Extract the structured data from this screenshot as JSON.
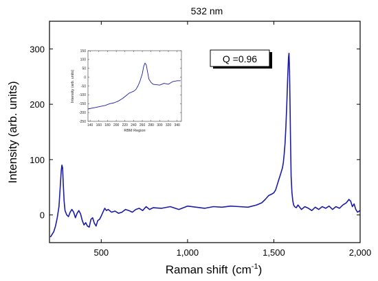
{
  "chart_data": [
    {
      "type": "line",
      "title": "532 nm",
      "xlabel": "Raman shift",
      "xlabel_unit_base": "(cm",
      "xlabel_unit_exp": "-1",
      "xlabel_unit_close": ")",
      "ylabel": "Intensity (arb. units)",
      "xlim": [
        200,
        2000
      ],
      "ylim": [
        -50,
        350
      ],
      "xticks": [
        500,
        1000,
        1500,
        2000
      ],
      "xtick_labels": [
        "500",
        "1,000",
        "1,500",
        "2,000"
      ],
      "yticks": [
        0,
        100,
        200,
        300
      ],
      "ytick_labels": [
        "0",
        "100",
        "200",
        "300"
      ],
      "line_color": "#1a1aa8",
      "annotation": "Q =0.96",
      "grid": false,
      "series": [
        {
          "x": [
            205,
            215,
            225,
            235,
            245,
            255,
            262,
            268,
            272,
            276,
            280,
            285,
            290,
            300,
            310,
            320,
            330,
            340,
            350,
            360,
            370,
            380,
            390,
            400,
            410,
            420,
            430,
            440,
            450,
            460,
            470,
            480,
            490,
            500,
            510,
            520,
            530,
            540,
            560,
            580,
            600,
            620,
            640,
            660,
            680,
            700,
            720,
            740,
            760,
            780,
            800,
            850,
            900,
            950,
            1000,
            1050,
            1100,
            1150,
            1200,
            1250,
            1300,
            1350,
            1400,
            1430,
            1450,
            1470,
            1490,
            1500,
            1510,
            1520,
            1530,
            1540,
            1550,
            1555,
            1560,
            1565,
            1570,
            1575,
            1580,
            1585,
            1588,
            1591,
            1594,
            1597,
            1600,
            1605,
            1610,
            1615,
            1620,
            1630,
            1640,
            1660,
            1680,
            1700,
            1720,
            1740,
            1760,
            1780,
            1800,
            1820,
            1840,
            1860,
            1880,
            1900,
            1920,
            1935,
            1945,
            1955,
            1965,
            1975,
            1985,
            2000
          ],
          "y": [
            -40,
            -35,
            -30,
            -20,
            -5,
            15,
            50,
            80,
            90,
            85,
            55,
            25,
            8,
            0,
            -3,
            5,
            10,
            5,
            -5,
            3,
            8,
            2,
            -10,
            -18,
            -14,
            -20,
            -22,
            -8,
            -5,
            -15,
            -20,
            -10,
            -8,
            -2,
            5,
            12,
            8,
            10,
            5,
            7,
            3,
            5,
            10,
            8,
            5,
            10,
            12,
            8,
            15,
            10,
            13,
            12,
            15,
            10,
            16,
            14,
            12,
            15,
            14,
            16,
            15,
            14,
            18,
            22,
            28,
            35,
            38,
            40,
            45,
            55,
            65,
            75,
            85,
            95,
            110,
            130,
            160,
            200,
            245,
            285,
            292,
            260,
            200,
            130,
            70,
            40,
            25,
            18,
            15,
            13,
            18,
            10,
            15,
            12,
            8,
            14,
            10,
            15,
            12,
            16,
            10,
            15,
            12,
            18,
            22,
            28,
            25,
            15,
            20,
            10,
            5,
            8
          ]
        }
      ]
    },
    {
      "type": "line",
      "role": "inset",
      "title": "",
      "xlabel": "RBM Region",
      "ylabel": "Intensity (arb. units)",
      "xlim": [
        135,
        350
      ],
      "ylim": [
        -250,
        150
      ],
      "xticks": [
        140,
        160,
        180,
        200,
        220,
        240,
        260,
        280,
        300,
        320,
        340
      ],
      "xtick_labels": [
        "140",
        "160",
        "180",
        "200",
        "220",
        "240",
        "260",
        "280",
        "300",
        "320",
        "340"
      ],
      "yticks": [
        -250,
        -200,
        -150,
        -100,
        -50,
        0,
        50,
        100,
        150
      ],
      "ytick_labels": [
        "-250",
        "-200",
        "-150",
        "-100",
        "-50",
        "0",
        "50",
        "100",
        "150"
      ],
      "line_color": "#1a1aa8",
      "series": [
        {
          "x": [
            135,
            145,
            155,
            165,
            175,
            185,
            195,
            205,
            215,
            225,
            230,
            235,
            240,
            245,
            250,
            255,
            260,
            263,
            266,
            269,
            272,
            275,
            280,
            285,
            290,
            300,
            310,
            320,
            330,
            340,
            348
          ],
          "y": [
            -180,
            -175,
            -170,
            -165,
            -160,
            -150,
            -145,
            -135,
            -120,
            -100,
            -90,
            -85,
            -80,
            -70,
            -50,
            -20,
            20,
            60,
            80,
            70,
            30,
            -10,
            -30,
            -40,
            -42,
            -45,
            -35,
            -40,
            -25,
            -20,
            -20
          ]
        }
      ]
    }
  ]
}
